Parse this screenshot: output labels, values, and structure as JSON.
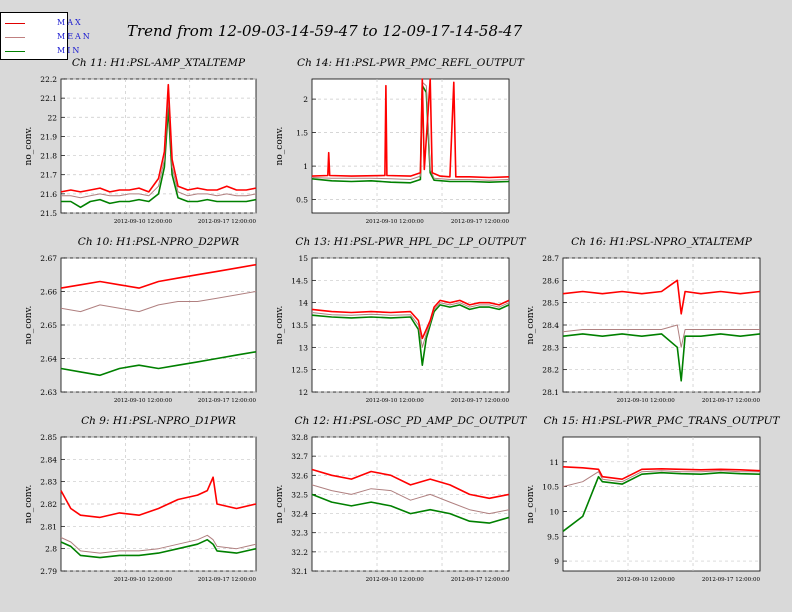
{
  "page": {
    "title": "Trend from 12-09-03-14-59-47 to 12-09-17-14-58-47"
  },
  "legend": {
    "items": [
      {
        "label": "MAX",
        "color": "#e00000"
      },
      {
        "label": "MEAN",
        "color": "#c08080"
      },
      {
        "label": "MIN",
        "color": "#008000"
      }
    ]
  },
  "colors": {
    "max": "#ff0000",
    "mean": "#b08080",
    "min": "#008000",
    "panel_bg": "#ffffff",
    "grid": "#c8c8c8"
  },
  "chart_data": [
    {
      "type": "line",
      "title": "Ch 11: H1:PSL-AMP_XTALTEMP",
      "ylabel": "no_conv.",
      "ylim": [
        21.5,
        22.2
      ],
      "yticks": [
        "21.5",
        "21.6",
        "21.7",
        "21.8",
        "21.9",
        "22",
        "22.1",
        "22.2"
      ],
      "xticks": [
        "2012-09-10 12:00:00",
        "2012-09-17 12:00:00"
      ],
      "series": [
        {
          "name": "MAX",
          "x": [
            0,
            0.05,
            0.1,
            0.15,
            0.2,
            0.25,
            0.3,
            0.35,
            0.4,
            0.45,
            0.5,
            0.53,
            0.55,
            0.57,
            0.6,
            0.65,
            0.7,
            0.75,
            0.8,
            0.85,
            0.9,
            0.95,
            1.0
          ],
          "values": [
            21.61,
            21.62,
            21.61,
            21.62,
            21.63,
            21.61,
            21.62,
            21.62,
            21.63,
            21.61,
            21.68,
            21.82,
            22.17,
            21.78,
            21.64,
            21.62,
            21.63,
            21.62,
            21.62,
            21.64,
            21.62,
            21.62,
            21.63
          ]
        },
        {
          "name": "MEAN",
          "x": [
            0,
            0.05,
            0.1,
            0.15,
            0.2,
            0.25,
            0.3,
            0.35,
            0.4,
            0.45,
            0.5,
            0.53,
            0.55,
            0.57,
            0.6,
            0.65,
            0.7,
            0.75,
            0.8,
            0.85,
            0.9,
            0.95,
            1.0
          ],
          "values": [
            21.59,
            21.59,
            21.58,
            21.59,
            21.6,
            21.59,
            21.59,
            21.6,
            21.6,
            21.59,
            21.64,
            21.78,
            22.1,
            21.74,
            21.61,
            21.59,
            21.6,
            21.6,
            21.59,
            21.6,
            21.59,
            21.59,
            21.6
          ]
        },
        {
          "name": "MIN",
          "x": [
            0,
            0.05,
            0.1,
            0.15,
            0.2,
            0.25,
            0.3,
            0.35,
            0.4,
            0.45,
            0.5,
            0.53,
            0.55,
            0.57,
            0.6,
            0.65,
            0.7,
            0.75,
            0.8,
            0.85,
            0.9,
            0.95,
            1.0
          ],
          "values": [
            21.56,
            21.56,
            21.53,
            21.56,
            21.57,
            21.55,
            21.56,
            21.56,
            21.57,
            21.56,
            21.6,
            21.74,
            22.05,
            21.7,
            21.58,
            21.56,
            21.56,
            21.57,
            21.56,
            21.56,
            21.56,
            21.56,
            21.57
          ]
        }
      ]
    },
    {
      "type": "line",
      "title": "Ch 14: H1:PSL-PWR_PMC_REFL_OUTPUT",
      "ylabel": "no_conv.",
      "ylim": [
        0.3,
        2.3
      ],
      "yticks": [
        "0.5",
        "1",
        "1.5",
        "2"
      ],
      "xticks": [
        "2012-09-10 12:00:00",
        "2012-09-17 12:00:00"
      ],
      "series": [
        {
          "name": "MAX",
          "x": [
            0,
            0.08,
            0.085,
            0.09,
            0.2,
            0.37,
            0.375,
            0.38,
            0.5,
            0.55,
            0.56,
            0.57,
            0.6,
            0.61,
            0.65,
            0.7,
            0.72,
            0.73,
            0.8,
            0.9,
            1.0
          ],
          "values": [
            0.85,
            0.86,
            1.2,
            0.86,
            0.85,
            0.86,
            2.2,
            0.86,
            0.85,
            0.9,
            2.3,
            0.95,
            2.3,
            0.9,
            0.85,
            0.84,
            2.25,
            0.84,
            0.84,
            0.83,
            0.84
          ]
        },
        {
          "name": "MEAN",
          "x": [
            0,
            0.1,
            0.2,
            0.3,
            0.4,
            0.5,
            0.55,
            0.56,
            0.58,
            0.6,
            0.62,
            0.7,
            0.8,
            0.9,
            1.0
          ],
          "values": [
            0.83,
            0.82,
            0.82,
            0.82,
            0.81,
            0.8,
            0.85,
            2.25,
            2.2,
            0.95,
            0.82,
            0.8,
            0.8,
            0.79,
            0.8
          ]
        },
        {
          "name": "MIN",
          "x": [
            0,
            0.1,
            0.2,
            0.3,
            0.4,
            0.5,
            0.55,
            0.56,
            0.58,
            0.6,
            0.62,
            0.7,
            0.8,
            0.9,
            1.0
          ],
          "values": [
            0.81,
            0.78,
            0.77,
            0.78,
            0.76,
            0.75,
            0.8,
            2.2,
            2.1,
            0.9,
            0.79,
            0.77,
            0.77,
            0.76,
            0.77
          ]
        }
      ]
    },
    {
      "type": "line",
      "title": "Ch 10: H1:PSL-NPRO_D2PWR",
      "ylabel": "no_conv.",
      "ylim": [
        2.63,
        2.67
      ],
      "yticks": [
        "2.63",
        "2.64",
        "2.65",
        "2.66",
        "2.67"
      ],
      "xticks": [
        "2012-09-10 12:00:00",
        "2012-09-17 12:00:00"
      ],
      "series": [
        {
          "name": "MAX",
          "x": [
            0,
            0.1,
            0.2,
            0.3,
            0.4,
            0.5,
            0.6,
            0.7,
            0.8,
            0.9,
            1.0
          ],
          "values": [
            2.661,
            2.662,
            2.663,
            2.662,
            2.661,
            2.663,
            2.664,
            2.665,
            2.666,
            2.667,
            2.668
          ]
        },
        {
          "name": "MEAN",
          "x": [
            0,
            0.1,
            0.2,
            0.3,
            0.4,
            0.5,
            0.6,
            0.7,
            0.8,
            0.9,
            1.0
          ],
          "values": [
            2.655,
            2.654,
            2.656,
            2.655,
            2.654,
            2.656,
            2.657,
            2.657,
            2.658,
            2.659,
            2.66
          ]
        },
        {
          "name": "MIN",
          "x": [
            0,
            0.1,
            0.2,
            0.3,
            0.4,
            0.5,
            0.6,
            0.7,
            0.8,
            0.9,
            1.0
          ],
          "values": [
            2.637,
            2.636,
            2.635,
            2.637,
            2.638,
            2.637,
            2.638,
            2.639,
            2.64,
            2.641,
            2.642
          ]
        }
      ]
    },
    {
      "type": "line",
      "title": "Ch 13: H1:PSL-PWR_HPL_DC_LP_OUTPUT",
      "ylabel": "no_conv.",
      "ylim": [
        12,
        15
      ],
      "yticks": [
        "12",
        "12.5",
        "13",
        "13.5",
        "14",
        "14.5",
        "15"
      ],
      "xticks": [
        "2012-09-10 12:00:00",
        "2012-09-17 12:00:00"
      ],
      "series": [
        {
          "name": "MAX",
          "x": [
            0,
            0.1,
            0.2,
            0.3,
            0.4,
            0.5,
            0.54,
            0.56,
            0.58,
            0.6,
            0.62,
            0.65,
            0.7,
            0.75,
            0.8,
            0.85,
            0.9,
            0.95,
            1.0
          ],
          "values": [
            13.85,
            13.8,
            13.78,
            13.8,
            13.78,
            13.8,
            13.6,
            13.2,
            13.4,
            13.6,
            13.9,
            14.05,
            14.0,
            14.05,
            13.95,
            14.0,
            14.0,
            13.95,
            14.05
          ]
        },
        {
          "name": "MEAN",
          "x": [
            0,
            0.1,
            0.2,
            0.3,
            0.4,
            0.5,
            0.54,
            0.56,
            0.58,
            0.6,
            0.62,
            0.65,
            0.7,
            0.75,
            0.8,
            0.85,
            0.9,
            0.95,
            1.0
          ],
          "values": [
            13.78,
            13.73,
            13.72,
            13.74,
            13.72,
            13.73,
            13.5,
            13.0,
            13.3,
            13.55,
            13.85,
            14.0,
            13.95,
            14.0,
            13.9,
            13.95,
            13.95,
            13.9,
            14.0
          ]
        },
        {
          "name": "MIN",
          "x": [
            0,
            0.1,
            0.2,
            0.3,
            0.4,
            0.5,
            0.54,
            0.56,
            0.58,
            0.6,
            0.62,
            0.65,
            0.7,
            0.75,
            0.8,
            0.85,
            0.9,
            0.95,
            1.0
          ],
          "values": [
            13.72,
            13.68,
            13.66,
            13.68,
            13.66,
            13.68,
            13.4,
            12.6,
            13.2,
            13.5,
            13.8,
            13.95,
            13.9,
            13.95,
            13.85,
            13.9,
            13.9,
            13.85,
            13.95
          ]
        }
      ]
    },
    {
      "type": "line",
      "title": "Ch 16: H1:PSL-NPRO_XTALTEMP",
      "ylabel": "no_conv.",
      "ylim": [
        28.1,
        28.7
      ],
      "yticks": [
        "28.1",
        "28.2",
        "28.3",
        "28.4",
        "28.5",
        "28.6",
        "28.7"
      ],
      "xticks": [
        "2012-09-10 12:00:00",
        "2012-09-17 12:00:00"
      ],
      "series": [
        {
          "name": "MAX",
          "x": [
            0,
            0.1,
            0.2,
            0.3,
            0.4,
            0.5,
            0.58,
            0.6,
            0.62,
            0.7,
            0.8,
            0.9,
            1.0
          ],
          "values": [
            28.54,
            28.55,
            28.54,
            28.55,
            28.54,
            28.55,
            28.6,
            28.45,
            28.55,
            28.54,
            28.55,
            28.54,
            28.55
          ]
        },
        {
          "name": "MEAN",
          "x": [
            0,
            0.1,
            0.2,
            0.3,
            0.4,
            0.5,
            0.58,
            0.6,
            0.62,
            0.7,
            0.8,
            0.9,
            1.0
          ],
          "values": [
            28.37,
            28.38,
            28.38,
            28.38,
            28.38,
            28.38,
            28.4,
            28.3,
            28.38,
            28.38,
            28.38,
            28.38,
            28.38
          ]
        },
        {
          "name": "MIN",
          "x": [
            0,
            0.1,
            0.2,
            0.3,
            0.4,
            0.5,
            0.58,
            0.6,
            0.62,
            0.7,
            0.8,
            0.9,
            1.0
          ],
          "values": [
            28.35,
            28.36,
            28.35,
            28.36,
            28.35,
            28.36,
            28.3,
            28.15,
            28.35,
            28.35,
            28.36,
            28.35,
            28.36
          ]
        }
      ]
    },
    {
      "type": "line",
      "title": "Ch 9: H1:PSL-NPRO_D1PWR",
      "ylabel": "no_conv.",
      "ylim": [
        2.79,
        2.85
      ],
      "yticks": [
        "2.79",
        "2.8",
        "2.81",
        "2.82",
        "2.83",
        "2.84",
        "2.85"
      ],
      "xticks": [
        "2012-09-10 12:00:00",
        "2012-09-17 12:00:00"
      ],
      "series": [
        {
          "name": "MAX",
          "x": [
            0,
            0.05,
            0.1,
            0.2,
            0.3,
            0.4,
            0.5,
            0.6,
            0.7,
            0.75,
            0.78,
            0.8,
            0.9,
            1.0
          ],
          "values": [
            2.826,
            2.818,
            2.815,
            2.814,
            2.816,
            2.815,
            2.818,
            2.822,
            2.824,
            2.826,
            2.832,
            2.82,
            2.818,
            2.82
          ]
        },
        {
          "name": "MEAN",
          "x": [
            0,
            0.05,
            0.1,
            0.2,
            0.3,
            0.4,
            0.5,
            0.6,
            0.7,
            0.75,
            0.78,
            0.8,
            0.9,
            1.0
          ],
          "values": [
            2.805,
            2.803,
            2.799,
            2.798,
            2.799,
            2.799,
            2.8,
            2.802,
            2.804,
            2.806,
            2.804,
            2.801,
            2.8,
            2.802
          ]
        },
        {
          "name": "MIN",
          "x": [
            0,
            0.05,
            0.1,
            0.2,
            0.3,
            0.4,
            0.5,
            0.6,
            0.7,
            0.75,
            0.78,
            0.8,
            0.9,
            1.0
          ],
          "values": [
            2.803,
            2.801,
            2.797,
            2.796,
            2.797,
            2.797,
            2.798,
            2.8,
            2.802,
            2.804,
            2.802,
            2.799,
            2.798,
            2.8
          ]
        }
      ]
    },
    {
      "type": "line",
      "title": "Ch 12: H1:PSL-OSC_PD_AMP_DC_OUTPUT",
      "ylabel": "no_conv.",
      "ylim": [
        32.1,
        32.8
      ],
      "yticks": [
        "32.1",
        "32.2",
        "32.3",
        "32.4",
        "32.5",
        "32.6",
        "32.7",
        "32.8"
      ],
      "xticks": [
        "2012-09-10 12:00:00",
        "2012-09-17 12:00:00"
      ],
      "series": [
        {
          "name": "MAX",
          "x": [
            0,
            0.1,
            0.2,
            0.3,
            0.4,
            0.5,
            0.6,
            0.7,
            0.8,
            0.9,
            1.0
          ],
          "values": [
            32.63,
            32.6,
            32.58,
            32.62,
            32.6,
            32.55,
            32.58,
            32.55,
            32.5,
            32.48,
            32.5
          ]
        },
        {
          "name": "MEAN",
          "x": [
            0,
            0.1,
            0.2,
            0.3,
            0.4,
            0.5,
            0.6,
            0.7,
            0.8,
            0.9,
            1.0
          ],
          "values": [
            32.55,
            32.52,
            32.5,
            32.53,
            32.52,
            32.47,
            32.5,
            32.46,
            32.42,
            32.4,
            32.42
          ]
        },
        {
          "name": "MIN",
          "x": [
            0,
            0.1,
            0.2,
            0.3,
            0.4,
            0.5,
            0.6,
            0.7,
            0.8,
            0.9,
            1.0
          ],
          "values": [
            32.5,
            32.46,
            32.44,
            32.46,
            32.44,
            32.4,
            32.42,
            32.4,
            32.36,
            32.35,
            32.38
          ]
        }
      ]
    },
    {
      "type": "line",
      "title": "Ch 15: H1:PSL-PWR_PMC_TRANS_OUTPUT",
      "ylabel": "no_conv.",
      "ylim": [
        8.8,
        11.5
      ],
      "yticks": [
        "9",
        "9.5",
        "10",
        "10.5",
        "11"
      ],
      "xticks": [
        "2012-09-10 12:00:00",
        "2012-09-17 12:00:00"
      ],
      "series": [
        {
          "name": "MAX",
          "x": [
            0,
            0.1,
            0.18,
            0.2,
            0.3,
            0.4,
            0.5,
            0.6,
            0.7,
            0.8,
            0.9,
            1.0
          ],
          "values": [
            10.9,
            10.88,
            10.85,
            10.7,
            10.65,
            10.85,
            10.86,
            10.85,
            10.84,
            10.85,
            10.84,
            10.82
          ]
        },
        {
          "name": "MEAN",
          "x": [
            0,
            0.1,
            0.18,
            0.2,
            0.3,
            0.4,
            0.5,
            0.6,
            0.7,
            0.8,
            0.9,
            1.0
          ],
          "values": [
            10.5,
            10.6,
            10.8,
            10.65,
            10.6,
            10.8,
            10.82,
            10.8,
            10.8,
            10.82,
            10.8,
            10.8
          ]
        },
        {
          "name": "MIN",
          "x": [
            0,
            0.1,
            0.18,
            0.2,
            0.3,
            0.4,
            0.5,
            0.6,
            0.7,
            0.8,
            0.9,
            1.0
          ],
          "values": [
            9.6,
            9.9,
            10.7,
            10.6,
            10.55,
            10.75,
            10.78,
            10.76,
            10.75,
            10.78,
            10.76,
            10.75
          ]
        }
      ]
    }
  ]
}
